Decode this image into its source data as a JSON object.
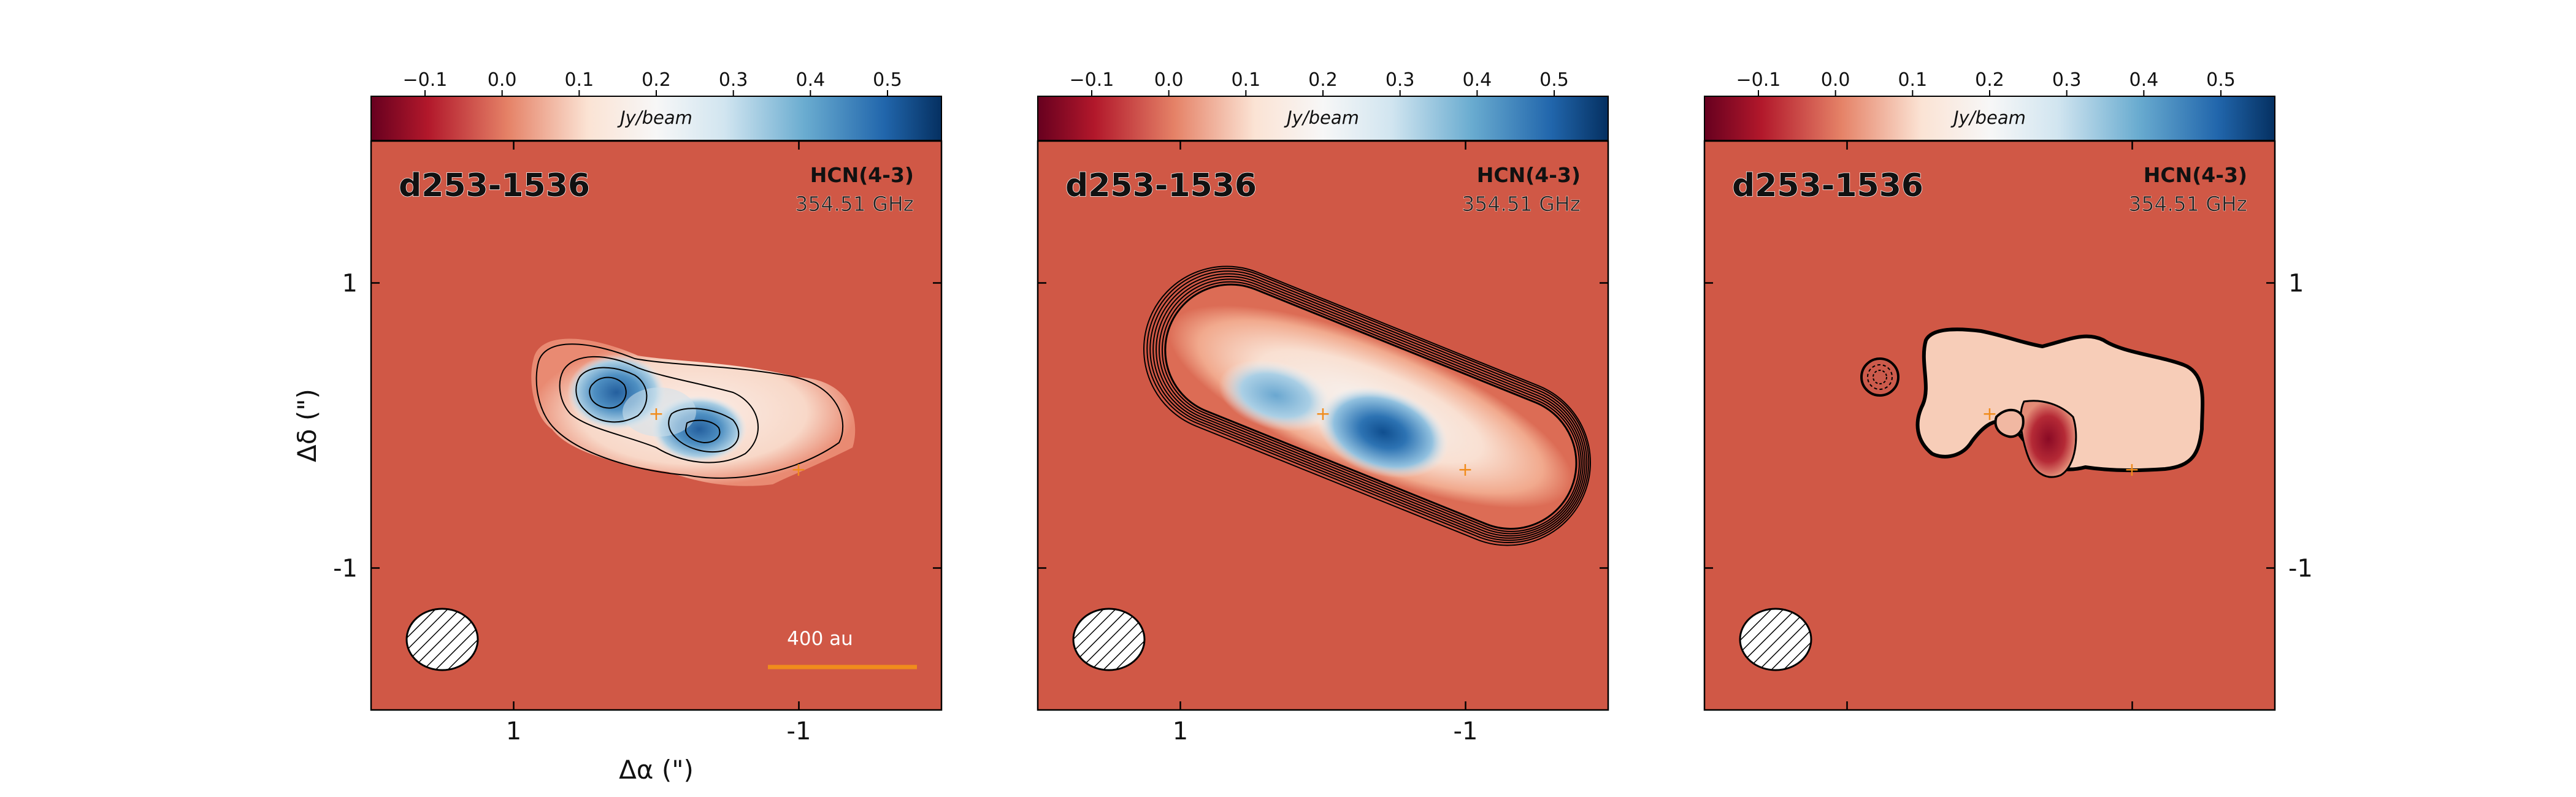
{
  "figure": {
    "source_name": "d253-1536",
    "line_name": "HCN(4-3)",
    "frequency": "354.51 GHz",
    "colorbar_unit": "Jy/beam",
    "colorbar_ticks": [
      "−0.1",
      "0.0",
      "0.1",
      "0.2",
      "0.3",
      "0.4",
      "0.5"
    ],
    "colorbar_tick_values": [
      -0.1,
      0.0,
      0.1,
      0.2,
      0.3,
      0.4,
      0.5
    ],
    "colorbar_range": [
      -0.17,
      0.57
    ],
    "xlabel": "Δα (\")",
    "ylabel": "Δδ (\")",
    "x_ticks": [
      "1",
      "-1"
    ],
    "x_tick_values": [
      1,
      -1
    ],
    "y_ticks": [
      "1",
      "-1"
    ],
    "y_tick_values": [
      1,
      -1
    ],
    "scale_bar_label": "400 au",
    "colors": {
      "background": "#d05846",
      "peak": "#2f6fb0",
      "star_marker": "#f08c1c",
      "scale_bar": "#f08c1c"
    }
  },
  "chart_data": [
    {
      "type": "heatmap",
      "panel": "data",
      "title": "d253-1536",
      "xlabel": "Δα (\")",
      "ylabel": "Δδ (\")",
      "xlim": [
        2.0,
        -2.0
      ],
      "ylim": [
        -2.0,
        2.0
      ],
      "colorbar": {
        "label": "Jy/beam",
        "range": [
          -0.17,
          0.57
        ],
        "colormap": "RdBu"
      },
      "peaks": [
        {
          "x": 0.5,
          "y": 0.25,
          "value": 0.45
        },
        {
          "x": -0.35,
          "y": 0.0,
          "value": 0.45
        }
      ],
      "star_markers": [
        {
          "x": 0.0,
          "y": 0.1
        },
        {
          "x": -1.0,
          "y": -0.3
        }
      ],
      "beam": {
        "x": 1.55,
        "y": -1.5
      }
    },
    {
      "type": "heatmap",
      "panel": "model",
      "title": "d253-1536",
      "xlim": [
        2.0,
        -2.0
      ],
      "ylim": [
        -2.0,
        2.0
      ],
      "colorbar": {
        "label": "Jy/beam",
        "range": [
          -0.17,
          0.57
        ],
        "colormap": "RdBu"
      },
      "peaks": [
        {
          "x": -0.45,
          "y": -0.05,
          "value": 0.55
        },
        {
          "x": 0.5,
          "y": 0.25,
          "value": 0.35
        }
      ],
      "star_markers": [
        {
          "x": 0.0,
          "y": 0.1
        },
        {
          "x": -1.0,
          "y": -0.3
        }
      ],
      "beam": {
        "x": 1.55,
        "y": -1.5
      }
    },
    {
      "type": "heatmap",
      "panel": "residual",
      "title": "d253-1536",
      "xlim": [
        2.0,
        -2.0
      ],
      "ylim": [
        -2.0,
        2.0
      ],
      "colorbar": {
        "label": "Jy/beam",
        "range": [
          -0.17,
          0.57
        ],
        "colormap": "RdBu"
      },
      "peaks": [
        {
          "x": -0.35,
          "y": -0.05,
          "value": -0.12
        }
      ],
      "star_markers": [
        {
          "x": 0.0,
          "y": 0.1
        },
        {
          "x": -1.0,
          "y": -0.3
        }
      ],
      "beam": {
        "x": 1.55,
        "y": -1.5
      }
    }
  ]
}
